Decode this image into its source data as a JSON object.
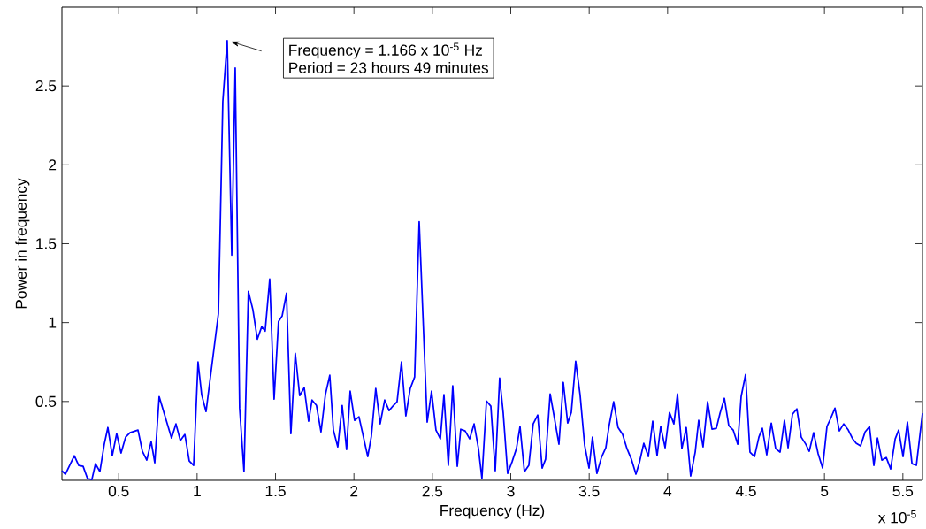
{
  "chart_data": {
    "type": "line",
    "xlabel": "Frequency (Hz)",
    "ylabel": "Power in frequency",
    "x": [
      0.138,
      0.16,
      0.217,
      0.245,
      0.273,
      0.301,
      0.329,
      0.352,
      0.38,
      0.408,
      0.431,
      0.459,
      0.487,
      0.515,
      0.544,
      0.572,
      0.623,
      0.651,
      0.679,
      0.707,
      0.73,
      0.758,
      0.837,
      0.865,
      0.893,
      0.922,
      0.95,
      0.978,
      1.006,
      1.029,
      1.057,
      1.136,
      1.164,
      1.192,
      1.221,
      1.243,
      1.271,
      1.299,
      1.327,
      1.356,
      1.384,
      1.412,
      1.434,
      1.463,
      1.491,
      1.519,
      1.542,
      1.57,
      1.598,
      1.626,
      1.654,
      1.683,
      1.711,
      1.733,
      1.761,
      1.79,
      1.818,
      1.846,
      1.869,
      1.897,
      1.925,
      1.953,
      1.976,
      2.004,
      2.032,
      2.088,
      2.111,
      2.139,
      2.167,
      2.196,
      2.224,
      2.252,
      2.275,
      2.303,
      2.331,
      2.359,
      2.387,
      2.416,
      2.467,
      2.495,
      2.523,
      2.551,
      2.574,
      2.602,
      2.63,
      2.659,
      2.681,
      2.709,
      2.738,
      2.766,
      2.794,
      2.816,
      2.845,
      2.873,
      2.901,
      2.929,
      2.952,
      2.98,
      3.008,
      3.036,
      3.059,
      3.087,
      3.115,
      3.143,
      3.172,
      3.2,
      3.222,
      3.251,
      3.279,
      3.307,
      3.335,
      3.363,
      3.386,
      3.414,
      3.442,
      3.471,
      3.499,
      3.521,
      3.549,
      3.578,
      3.606,
      3.628,
      3.656,
      3.684,
      3.713,
      3.741,
      3.769,
      3.798,
      3.82,
      3.848,
      3.877,
      3.905,
      3.933,
      3.956,
      3.984,
      4.012,
      4.04,
      4.063,
      4.091,
      4.119,
      4.147,
      4.176,
      4.198,
      4.226,
      4.255,
      4.283,
      4.311,
      4.334,
      4.362,
      4.39,
      4.418,
      4.447,
      4.469,
      4.497,
      4.525,
      4.554,
      4.582,
      4.604,
      4.632,
      4.661,
      4.689,
      4.717,
      4.745,
      4.768,
      4.796,
      4.824,
      4.852,
      4.881,
      4.903,
      4.931,
      4.96,
      4.988,
      5.016,
      5.039,
      5.067,
      5.095,
      5.123,
      5.152,
      5.18,
      5.202,
      5.23,
      5.259,
      5.287,
      5.315,
      5.338,
      5.366,
      5.394,
      5.422,
      5.451,
      5.473,
      5.501,
      5.529,
      5.558,
      5.586,
      5.625
    ],
    "series": [
      {
        "color": "#0000ff",
        "values": [
          0.061,
          0.039,
          0.156,
          0.095,
          0.089,
          0.011,
          0.005,
          0.106,
          0.055,
          0.229,
          0.335,
          0.156,
          0.296,
          0.173,
          0.274,
          0.302,
          0.319,
          0.184,
          0.128,
          0.246,
          0.111,
          0.531,
          0.268,
          0.358,
          0.252,
          0.291,
          0.123,
          0.095,
          0.75,
          0.543,
          0.436,
          1.058,
          2.401,
          2.788,
          1.428,
          2.614,
          0.459,
          0.055,
          1.198,
          1.08,
          0.895,
          0.974,
          0.946,
          1.276,
          0.515,
          1.007,
          1.041,
          1.186,
          0.296,
          0.806,
          0.537,
          0.587,
          0.375,
          0.509,
          0.475,
          0.307,
          0.543,
          0.666,
          0.319,
          0.212,
          0.475,
          0.195,
          0.565,
          0.38,
          0.403,
          0.151,
          0.279,
          0.582,
          0.358,
          0.509,
          0.442,
          0.475,
          0.498,
          0.75,
          0.408,
          0.582,
          0.655,
          1.64,
          0.369,
          0.565,
          0.319,
          0.263,
          0.543,
          0.095,
          0.599,
          0.089,
          0.324,
          0.313,
          0.263,
          0.358,
          0.201,
          0.011,
          0.503,
          0.47,
          0.061,
          0.649,
          0.425,
          0.044,
          0.117,
          0.201,
          0.341,
          0.055,
          0.095,
          0.358,
          0.414,
          0.078,
          0.134,
          0.548,
          0.391,
          0.229,
          0.621,
          0.363,
          0.431,
          0.755,
          0.543,
          0.223,
          0.078,
          0.274,
          0.044,
          0.145,
          0.207,
          0.352,
          0.498,
          0.335,
          0.291,
          0.201,
          0.134,
          0.039,
          0.112,
          0.235,
          0.151,
          0.375,
          0.156,
          0.341,
          0.207,
          0.43,
          0.358,
          0.548,
          0.201,
          0.335,
          0.027,
          0.179,
          0.38,
          0.212,
          0.498,
          0.324,
          0.33,
          0.425,
          0.52,
          0.347,
          0.319,
          0.229,
          0.531,
          0.671,
          0.179,
          0.151,
          0.274,
          0.33,
          0.162,
          0.363,
          0.201,
          0.179,
          0.38,
          0.207,
          0.419,
          0.453,
          0.274,
          0.229,
          0.184,
          0.302,
          0.168,
          0.078,
          0.341,
          0.391,
          0.458,
          0.313,
          0.358,
          0.319,
          0.263,
          0.235,
          0.218,
          0.307,
          0.341,
          0.095,
          0.268,
          0.128,
          0.145,
          0.072,
          0.263,
          0.319,
          0.151,
          0.369,
          0.106,
          0.095,
          0.425
        ]
      }
    ],
    "xlim": [
      0.138,
      5.625
    ],
    "ylim": [
      0,
      3
    ],
    "xticks": [
      0.5,
      1,
      1.5,
      2,
      2.5,
      3,
      3.5,
      4,
      4.5,
      5,
      5.5
    ],
    "yticks": [
      0.5,
      1,
      1.5,
      2,
      2.5
    ],
    "grid": false,
    "marker": "none",
    "line_style": "solid",
    "annotations": [
      "Frequency = 1.166 x 10$^{-5}$ Hz",
      "Period = 23 hours 49 minutes",
      "x 10$^{-5}$"
    ]
  }
}
